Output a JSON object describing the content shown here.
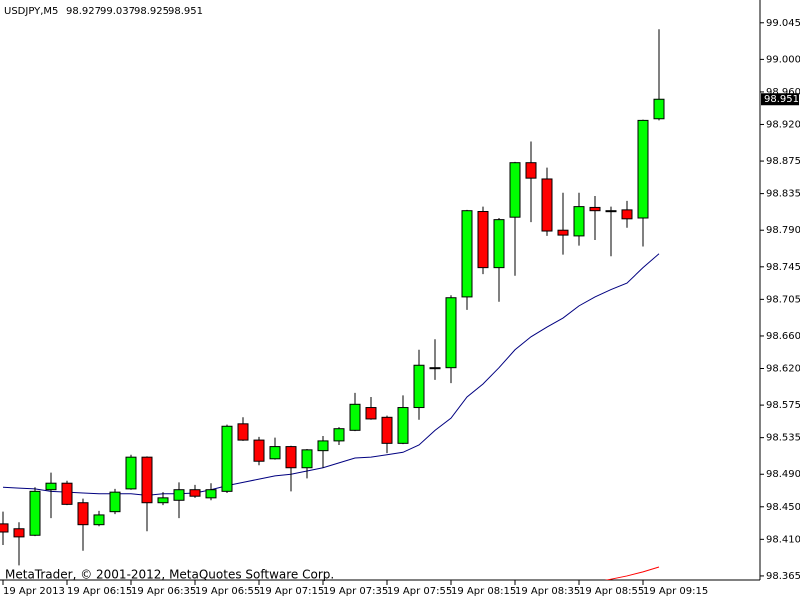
{
  "chart_data": {
    "type": "candlestick",
    "title": "USDJPY,M5",
    "footer": "MetaTrader, © 2001-2012, MetaQuotes Software Corp.",
    "categories": [
      "19 Apr 2013",
      null,
      null,
      null,
      "19 Apr 06:15",
      null,
      null,
      null,
      "19 Apr 06:35",
      null,
      null,
      null,
      "19 Apr 06:55",
      null,
      null,
      null,
      "19 Apr 07:15",
      null,
      null,
      null,
      "19 Apr 07:35",
      null,
      null,
      null,
      "19 Apr 07:55",
      null,
      null,
      null,
      "19 Apr 08:15",
      null,
      null,
      null,
      "19 Apr 08:35",
      null,
      null,
      null,
      "19 Apr 08:55",
      null,
      null,
      null,
      "19 Apr 09:15",
      null
    ],
    "open": [
      98.429,
      98.423,
      98.415,
      98.471,
      98.479,
      98.455,
      98.428,
      98.444,
      98.472,
      98.511,
      98.455,
      98.458,
      98.471,
      98.461,
      98.469,
      98.552,
      98.532,
      98.509,
      98.524,
      98.498,
      98.519,
      98.531,
      98.544,
      98.572,
      98.56,
      98.528,
      98.572,
      98.621,
      98.621,
      98.708,
      98.813,
      98.744,
      98.806,
      98.873,
      98.853,
      98.79,
      98.783,
      98.818,
      98.814,
      98.815,
      98.805,
      98.927
    ],
    "high": [
      98.444,
      98.431,
      98.474,
      98.492,
      98.482,
      98.46,
      98.445,
      98.472,
      98.514,
      98.512,
      98.468,
      98.48,
      98.477,
      98.479,
      98.551,
      98.56,
      98.536,
      98.535,
      98.525,
      98.521,
      98.537,
      98.548,
      98.59,
      98.585,
      98.562,
      98.587,
      98.643,
      98.656,
      98.71,
      98.815,
      98.819,
      98.805,
      98.874,
      98.899,
      98.867,
      98.836,
      98.836,
      98.832,
      98.819,
      98.826,
      98.926,
      99.037
    ],
    "low": [
      98.403,
      98.378,
      98.414,
      98.436,
      98.452,
      98.396,
      98.426,
      98.441,
      98.471,
      98.42,
      98.452,
      98.436,
      98.461,
      98.458,
      98.467,
      98.531,
      98.501,
      98.508,
      98.469,
      98.485,
      98.498,
      98.526,
      98.543,
      98.557,
      98.516,
      98.527,
      98.557,
      98.606,
      98.602,
      98.692,
      98.736,
      98.702,
      98.734,
      98.8,
      98.783,
      98.76,
      98.771,
      98.778,
      98.758,
      98.793,
      98.77,
      98.925
    ],
    "close": [
      98.419,
      98.413,
      98.469,
      98.479,
      98.453,
      98.428,
      98.44,
      98.468,
      98.511,
      98.455,
      98.461,
      98.471,
      98.463,
      98.471,
      98.549,
      98.532,
      98.506,
      98.524,
      98.498,
      98.52,
      98.531,
      98.546,
      98.576,
      98.558,
      98.528,
      98.572,
      98.624,
      98.621,
      98.707,
      98.814,
      98.744,
      98.803,
      98.873,
      98.854,
      98.789,
      98.784,
      98.819,
      98.814,
      98.814,
      98.804,
      98.925,
      98.951
    ],
    "up_color": "#00ff00",
    "down_color": "#ff0000",
    "lines": [
      {
        "color": "#000080",
        "values": [
          98.474,
          98.473,
          98.472,
          98.469,
          98.468,
          98.467,
          98.466,
          98.466,
          98.466,
          98.464,
          98.466,
          98.466,
          98.467,
          98.471,
          98.476,
          98.48,
          98.484,
          98.488,
          98.49,
          98.494,
          98.498,
          98.504,
          98.51,
          98.511,
          98.514,
          98.517,
          98.526,
          98.544,
          98.559,
          98.585,
          98.601,
          98.621,
          98.643,
          98.659,
          98.671,
          98.682,
          98.697,
          98.708,
          98.717,
          98.725,
          98.744,
          98.761
        ]
      },
      {
        "color": "#ff0000",
        "values": [
          null,
          null,
          null,
          null,
          null,
          null,
          null,
          null,
          null,
          null,
          null,
          null,
          null,
          null,
          null,
          null,
          null,
          null,
          null,
          null,
          null,
          null,
          null,
          null,
          null,
          null,
          null,
          null,
          null,
          null,
          null,
          null,
          null,
          null,
          null,
          null,
          null,
          98.357,
          98.361,
          98.365,
          98.37,
          98.376
        ]
      }
    ],
    "ylim": [
      98.36,
      99.073
    ],
    "yticks": [
      99.045,
      {
        "value": 99,
        "label": "99.000"
      },
      {
        "value": 98.96,
        "label": "98.960"
      },
      {
        "value": 98.92,
        "label": "98.920"
      },
      98.875,
      98.835,
      {
        "value": 98.79,
        "label": "98.790"
      },
      98.745,
      98.705,
      {
        "value": 98.66,
        "label": "98.660"
      },
      {
        "value": 98.62,
        "label": "98.620"
      },
      98.575,
      98.535,
      {
        "value": 98.49,
        "label": "98.490"
      },
      {
        "value": 98.45,
        "label": "98.450"
      },
      {
        "value": 98.41,
        "label": "98.410"
      },
      98.365
    ],
    "grid": false
  }
}
